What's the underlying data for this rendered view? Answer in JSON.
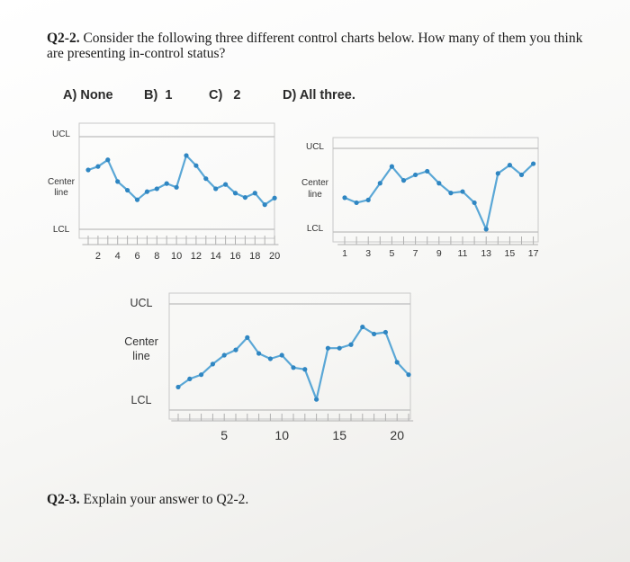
{
  "question": {
    "number": "Q2-2.",
    "text": "Consider the following three different control charts below. How many of them you think are presenting in-control status?"
  },
  "options": [
    {
      "letter": "A)",
      "label": "None"
    },
    {
      "letter": "B)",
      "label": "1"
    },
    {
      "letter": "C)",
      "label": "2"
    },
    {
      "letter": "D)",
      "label": "All three."
    }
  ],
  "followup": {
    "number": "Q2-3.",
    "text": "Explain your answer to Q2-2."
  },
  "chart_data": [
    {
      "type": "line",
      "labels": {
        "ucl": "UCL",
        "center": [
          "Center",
          "line"
        ],
        "lcl": "LCL"
      },
      "x": [
        1,
        2,
        3,
        4,
        5,
        6,
        7,
        8,
        9,
        10,
        11,
        12,
        13,
        14,
        15,
        16,
        17,
        18,
        19,
        20
      ],
      "xticks": [
        2,
        4,
        6,
        8,
        10,
        12,
        14,
        16,
        18,
        20
      ],
      "y": [
        0.45,
        0.57,
        0.8,
        0.05,
        -0.25,
        -0.58,
        -0.3,
        -0.2,
        -0.02,
        -0.15,
        0.95,
        0.6,
        0.15,
        -0.2,
        -0.05,
        -0.35,
        -0.5,
        -0.35,
        -0.75,
        -0.52
      ],
      "ylim": [
        -1.6,
        1.6
      ],
      "ucl": 1.6,
      "center": 0,
      "lcl": -1.6
    },
    {
      "type": "line",
      "labels": {
        "ucl": "UCL",
        "center": [
          "Center",
          "line"
        ],
        "lcl": "LCL"
      },
      "x": [
        1,
        2,
        3,
        4,
        5,
        6,
        7,
        8,
        9,
        10,
        11,
        12,
        13,
        14,
        15,
        16,
        17
      ],
      "xticks": [
        1,
        3,
        5,
        7,
        9,
        11,
        13,
        15,
        17
      ],
      "y": [
        -0.27,
        -0.45,
        -0.35,
        0.25,
        0.85,
        0.35,
        0.55,
        0.68,
        0.25,
        -0.1,
        -0.05,
        -0.45,
        -1.4,
        0.6,
        0.9,
        0.55,
        0.95
      ],
      "ylim": [
        -1.5,
        1.5
      ],
      "ucl": 1.5,
      "center": 0,
      "lcl": -1.5
    },
    {
      "type": "line",
      "labels": {
        "ucl": "UCL",
        "center": [
          "Center",
          "line"
        ],
        "lcl": "LCL"
      },
      "x": [
        1,
        2,
        3,
        4,
        5,
        6,
        7,
        8,
        9,
        10,
        11,
        12,
        13,
        14,
        15,
        16,
        17,
        18,
        19,
        20,
        21
      ],
      "xticks": [
        5,
        10,
        15,
        20
      ],
      "y": [
        -0.85,
        -0.62,
        -0.5,
        -0.2,
        0.05,
        0.2,
        0.55,
        0.1,
        -0.05,
        0.05,
        -0.3,
        -0.35,
        -1.2,
        0.25,
        0.25,
        0.35,
        0.85,
        0.65,
        0.7,
        -0.15,
        -0.5
      ],
      "ylim": [
        -1.5,
        1.5
      ],
      "ucl": 1.5,
      "center": 0,
      "lcl": -1.5
    }
  ]
}
